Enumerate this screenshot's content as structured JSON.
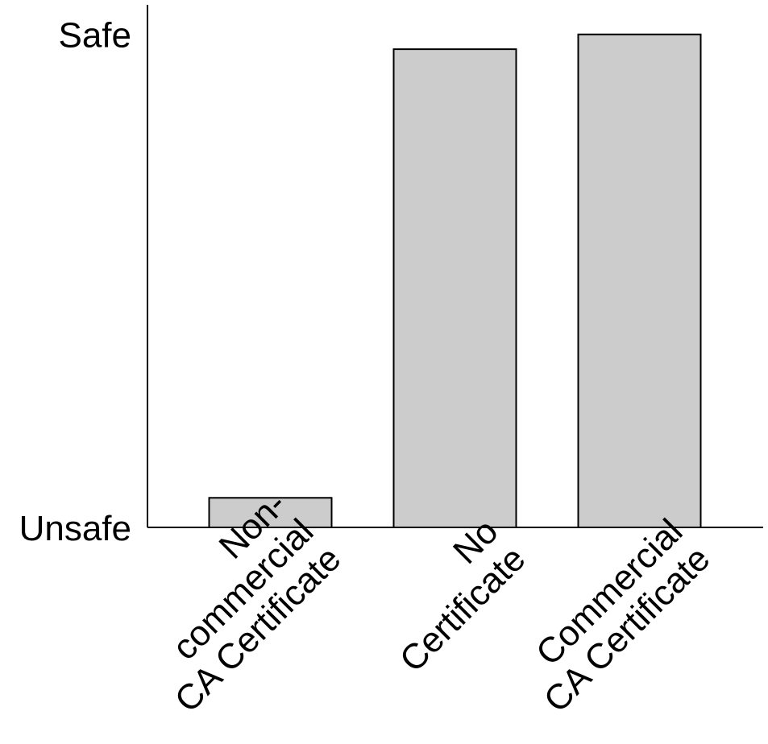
{
  "chart_data": {
    "type": "bar",
    "title": "",
    "xlabel": "",
    "ylabel": "",
    "categories": [
      [
        "Non-",
        "commercial",
        "CA Certificate"
      ],
      [
        "No",
        "Certificate"
      ],
      [
        "Commercial",
        "CA Certificate"
      ]
    ],
    "values": [
      0.06,
      0.97,
      1.0
    ],
    "ylim": [
      0,
      1.06
    ],
    "y_tick_labels": [
      {
        "value": 0,
        "label": "Unsafe"
      },
      {
        "value": 1.0,
        "label": "Safe"
      }
    ],
    "bar_color": "#cccccc",
    "grid": false,
    "legend": "none"
  }
}
